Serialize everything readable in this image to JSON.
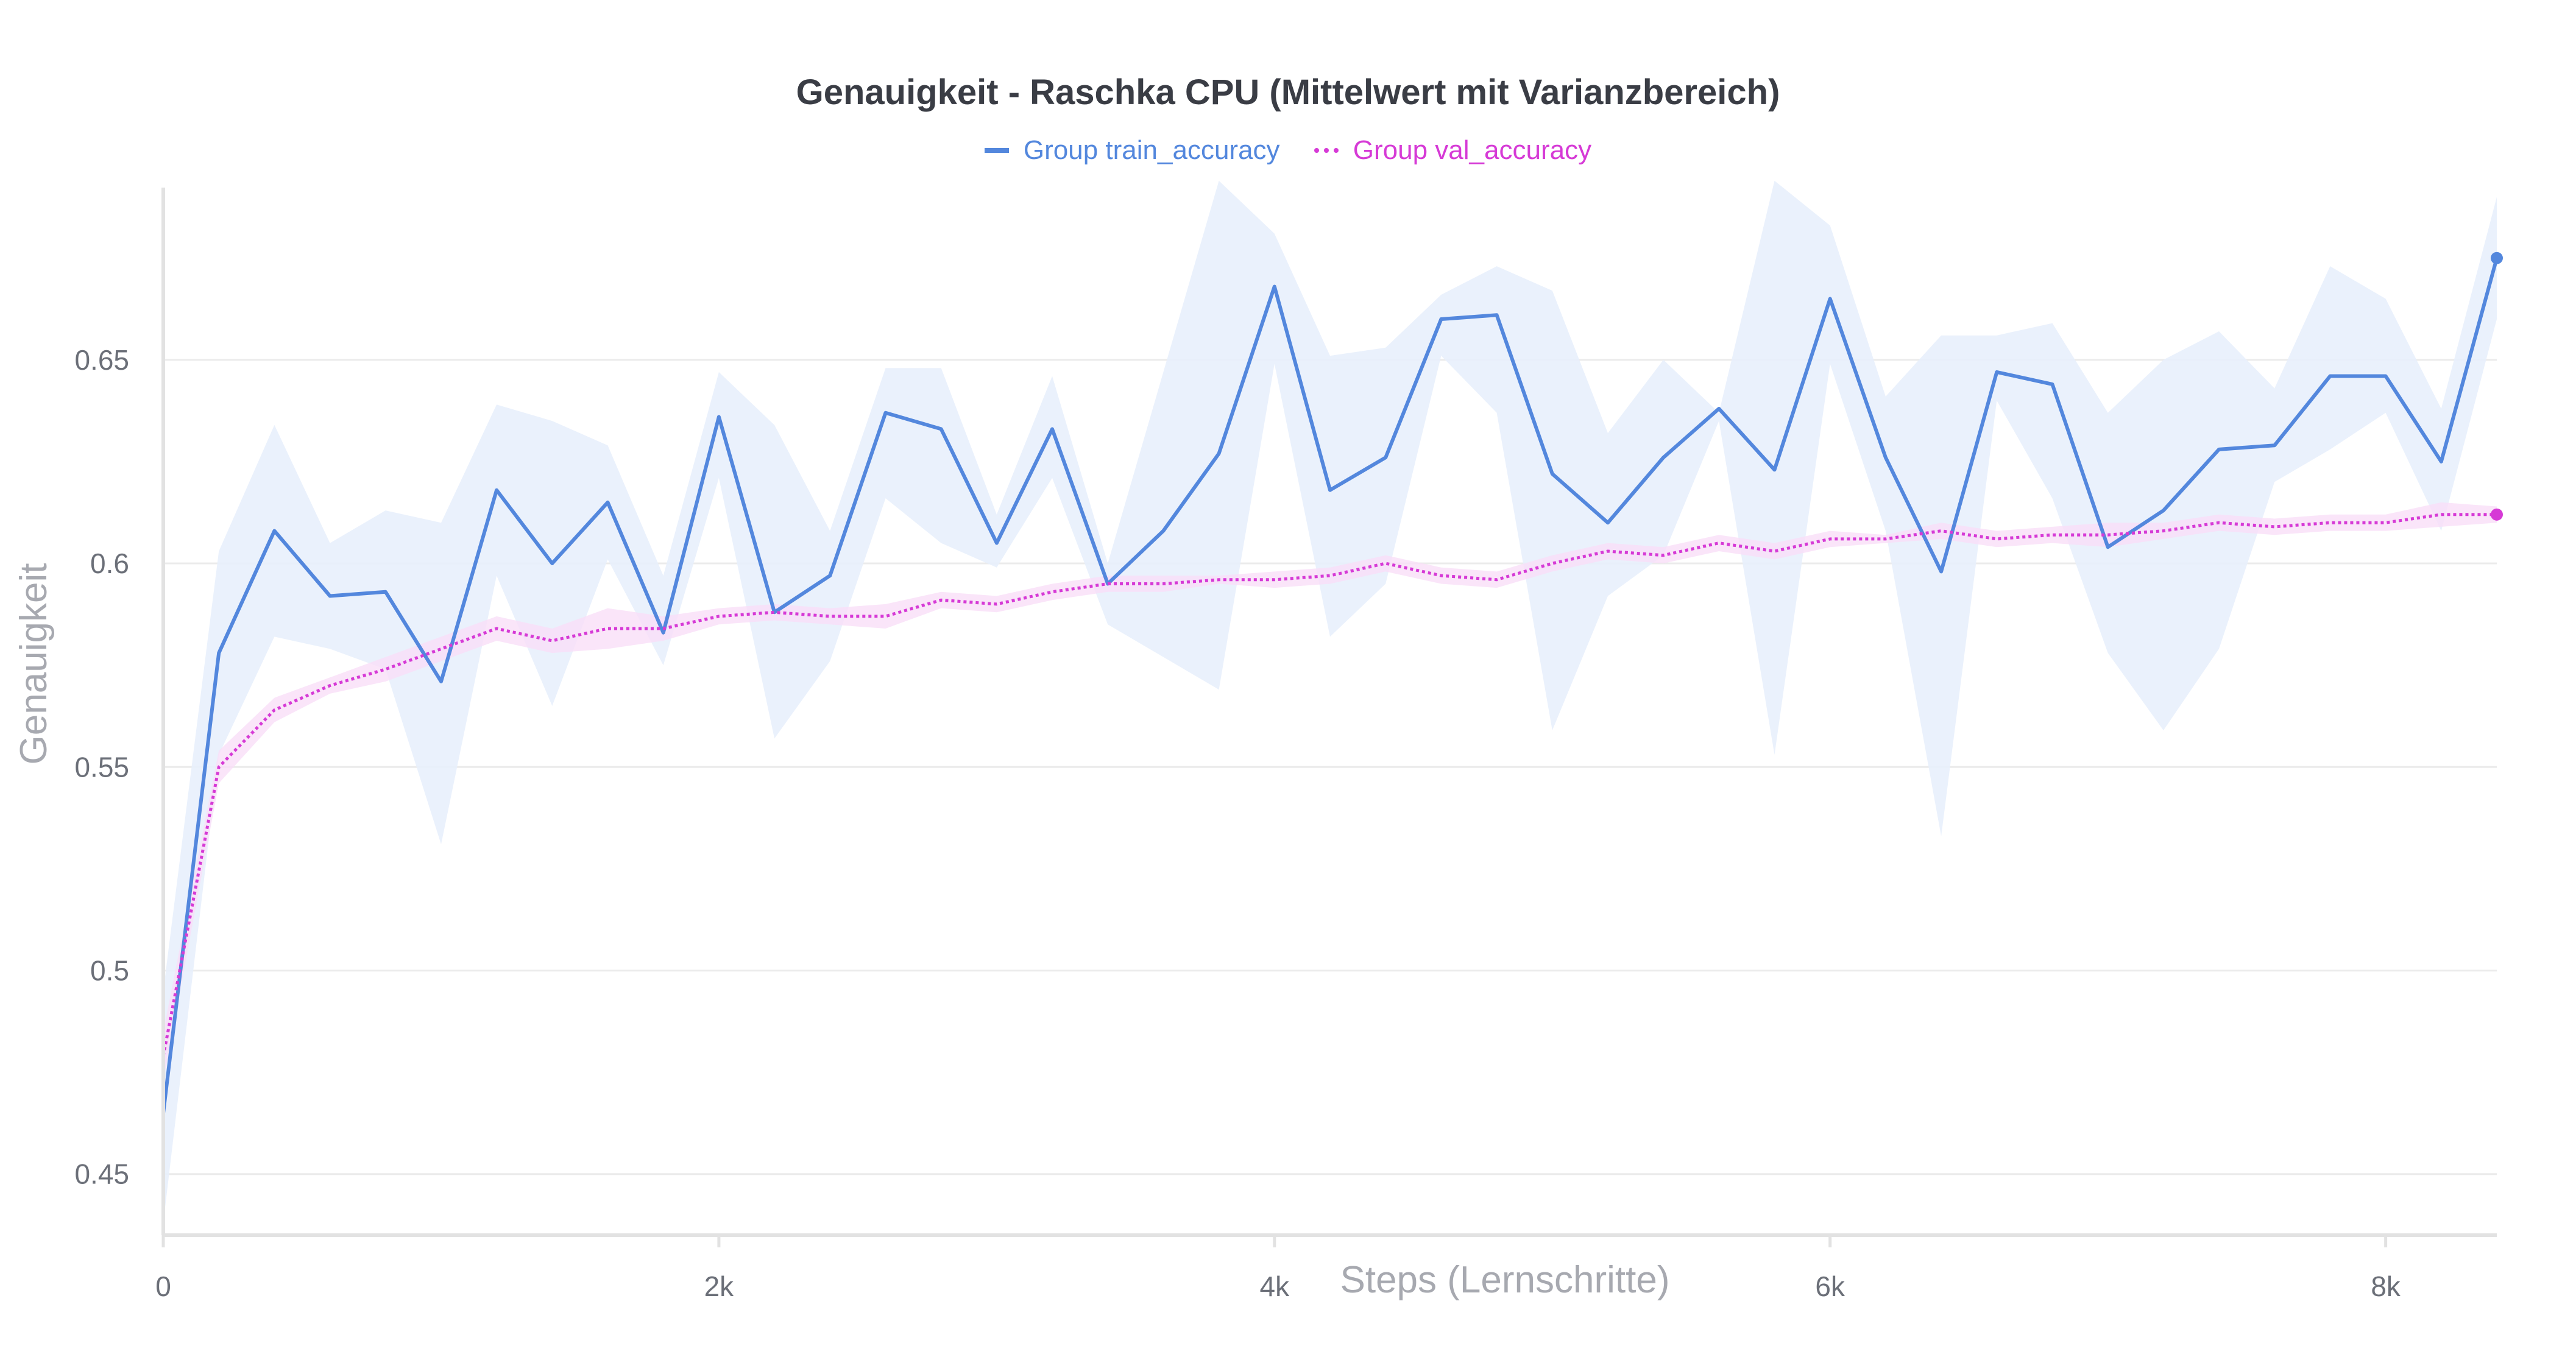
{
  "chart_data": {
    "type": "line",
    "title": "Genauigkeit - Raschka CPU (Mittelwert mit Varianzbereich)",
    "xlabel": "Steps (Lernschritte)",
    "ylabel": "Genauigkeit",
    "xlim": [
      0,
      8400
    ],
    "ylim": [
      0.435,
      0.695
    ],
    "x_ticks": [
      0,
      2000,
      4000,
      6000,
      8000
    ],
    "x_tick_labels": [
      "0",
      "2k",
      "4k",
      "6k",
      "8k"
    ],
    "y_ticks": [
      0.45,
      0.5,
      0.55,
      0.6,
      0.65
    ],
    "y_tick_labels": [
      "0.45",
      "0.5",
      "0.55",
      "0.6",
      "0.65"
    ],
    "grid": true,
    "legend_position": "top-center",
    "x": [
      0,
      200,
      400,
      600,
      800,
      1000,
      1200,
      1400,
      1600,
      1800,
      2000,
      2200,
      2400,
      2600,
      2800,
      3000,
      3200,
      3400,
      3600,
      3800,
      4000,
      4200,
      4400,
      4600,
      4800,
      5000,
      5200,
      5400,
      5600,
      5800,
      6000,
      6200,
      6400,
      6600,
      6800,
      7000,
      7200,
      7400,
      7600,
      7800,
      8000,
      8200,
      8400
    ],
    "series": [
      {
        "name": "Group train_accuracy",
        "color": "#5387dd",
        "style": "solid",
        "band_color": "#e8f0fc",
        "values": [
          0.465,
          0.578,
          0.608,
          0.592,
          0.593,
          0.571,
          0.618,
          0.6,
          0.615,
          0.583,
          0.636,
          0.588,
          0.597,
          0.637,
          0.633,
          0.605,
          0.633,
          0.595,
          0.608,
          0.627,
          0.668,
          0.618,
          0.626,
          0.66,
          0.661,
          0.622,
          0.61,
          0.626,
          0.638,
          0.623,
          0.665,
          0.626,
          0.598,
          0.647,
          0.644,
          0.604,
          0.613,
          0.628,
          0.629,
          0.646,
          0.646,
          0.625,
          0.675
        ],
        "upper": [
          0.495,
          0.603,
          0.634,
          0.605,
          0.613,
          0.61,
          0.639,
          0.635,
          0.629,
          0.597,
          0.647,
          0.634,
          0.608,
          0.648,
          0.648,
          0.612,
          0.646,
          0.6,
          0.647,
          0.694,
          0.681,
          0.651,
          0.653,
          0.666,
          0.673,
          0.667,
          0.632,
          0.65,
          0.637,
          0.694,
          0.683,
          0.641,
          0.656,
          0.656,
          0.659,
          0.637,
          0.65,
          0.657,
          0.643,
          0.673,
          0.665,
          0.638,
          0.69
        ],
        "lower": [
          0.438,
          0.553,
          0.582,
          0.579,
          0.574,
          0.531,
          0.597,
          0.565,
          0.601,
          0.575,
          0.621,
          0.557,
          0.576,
          0.616,
          0.605,
          0.599,
          0.621,
          0.585,
          0.577,
          0.569,
          0.649,
          0.582,
          0.595,
          0.651,
          0.637,
          0.559,
          0.592,
          0.602,
          0.635,
          0.553,
          0.649,
          0.608,
          0.533,
          0.64,
          0.616,
          0.578,
          0.559,
          0.579,
          0.62,
          0.628,
          0.637,
          0.608,
          0.66
        ]
      },
      {
        "name": "Group val_accuracy",
        "color": "#d63ad6",
        "style": "dotted",
        "band_color": "#f9def8",
        "values": [
          0.479,
          0.55,
          0.564,
          0.57,
          0.574,
          0.579,
          0.584,
          0.581,
          0.584,
          0.584,
          0.587,
          0.588,
          0.587,
          0.587,
          0.591,
          0.59,
          0.593,
          0.595,
          0.595,
          0.596,
          0.596,
          0.597,
          0.6,
          0.597,
          0.596,
          0.6,
          0.603,
          0.602,
          0.605,
          0.603,
          0.606,
          0.606,
          0.608,
          0.606,
          0.607,
          0.607,
          0.608,
          0.61,
          0.609,
          0.61,
          0.61,
          0.612,
          0.612
        ],
        "upper": [
          0.485,
          0.554,
          0.567,
          0.572,
          0.577,
          0.582,
          0.587,
          0.584,
          0.589,
          0.587,
          0.589,
          0.59,
          0.589,
          0.59,
          0.593,
          0.592,
          0.595,
          0.597,
          0.597,
          0.597,
          0.598,
          0.599,
          0.602,
          0.599,
          0.598,
          0.602,
          0.605,
          0.604,
          0.607,
          0.605,
          0.608,
          0.607,
          0.61,
          0.608,
          0.609,
          0.61,
          0.61,
          0.612,
          0.611,
          0.612,
          0.612,
          0.615,
          0.614
        ],
        "lower": [
          0.473,
          0.546,
          0.561,
          0.568,
          0.571,
          0.576,
          0.581,
          0.578,
          0.579,
          0.581,
          0.585,
          0.586,
          0.585,
          0.584,
          0.589,
          0.588,
          0.591,
          0.593,
          0.593,
          0.595,
          0.594,
          0.595,
          0.598,
          0.595,
          0.594,
          0.598,
          0.601,
          0.6,
          0.603,
          0.601,
          0.604,
          0.605,
          0.606,
          0.604,
          0.605,
          0.604,
          0.606,
          0.608,
          0.607,
          0.608,
          0.608,
          0.609,
          0.61
        ]
      }
    ]
  }
}
